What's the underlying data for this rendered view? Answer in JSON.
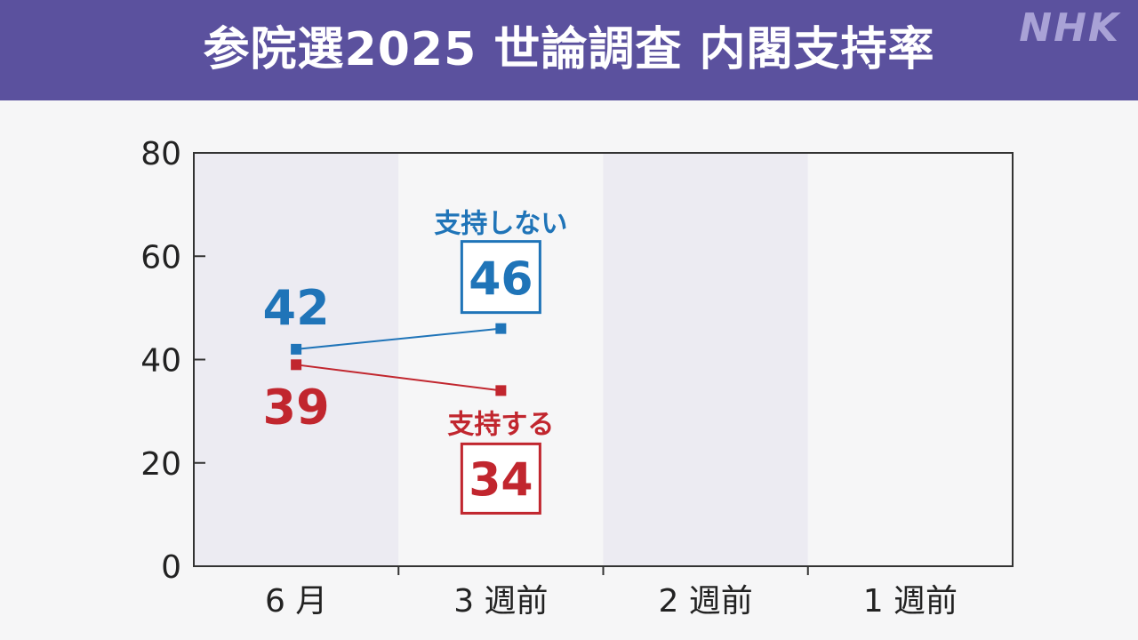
{
  "header": {
    "title": "参院選2025 世論調査 内閣支持率",
    "logo": "NHK"
  },
  "colors": {
    "header_bg": "#5b519e",
    "not_support": "#1f74b8",
    "support": "#c1262e",
    "band_dark": "#ecebf2",
    "band_light": "#f6f6f7"
  },
  "chart_data": {
    "type": "line",
    "categories": [
      "6 月",
      "3 週前",
      "2 週前",
      "1 週前"
    ],
    "ylim": [
      0,
      80
    ],
    "yticks": [
      0,
      20,
      40,
      60,
      80
    ],
    "series": [
      {
        "name": "支持しない",
        "key": "not_support",
        "values": [
          42,
          46,
          null,
          null
        ],
        "labels": [
          "42",
          "46"
        ]
      },
      {
        "name": "支持する",
        "key": "support",
        "values": [
          39,
          34,
          null,
          null
        ],
        "labels": [
          "39",
          "34"
        ]
      }
    ]
  }
}
